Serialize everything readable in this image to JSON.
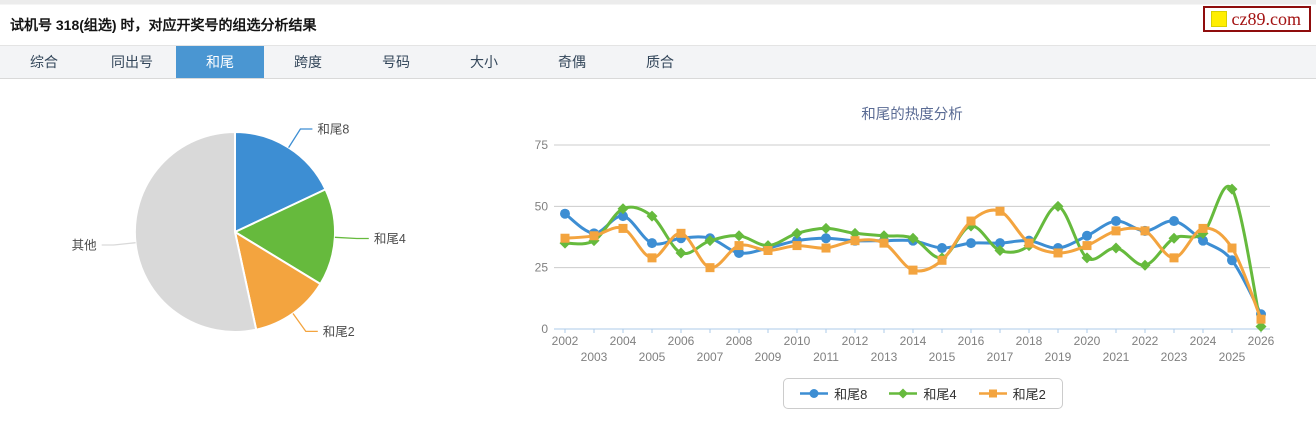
{
  "header": {
    "title": "试机号 318(组选) 时，对应开奖号的组选分析结果",
    "logo_text": "cz89.com"
  },
  "tabs": [
    {
      "label": "综合",
      "active": false
    },
    {
      "label": "同出号",
      "active": false
    },
    {
      "label": "和尾",
      "active": true
    },
    {
      "label": "跨度",
      "active": false
    },
    {
      "label": "号码",
      "active": false
    },
    {
      "label": "大小",
      "active": false
    },
    {
      "label": "奇偶",
      "active": false
    },
    {
      "label": "质合",
      "active": false
    }
  ],
  "colors": {
    "series_blue": "#3D8ED3",
    "series_green": "#66BA3D",
    "series_orange": "#F3A43F",
    "pie_gray": "#D9D9D9",
    "tab_active_bg": "#4A96D2",
    "chart_title": "#5A6B94",
    "axis_line": "#AECBE8",
    "grid_line": "#CCCCCC",
    "tick_label": "#808080",
    "pie_label": "#4D4D4D"
  },
  "chart_data": [
    {
      "type": "pie",
      "slices": [
        {
          "label": "和尾8",
          "percent": 18.0,
          "color_key": "series_blue"
        },
        {
          "label": "和尾4",
          "percent": 15.7,
          "color_key": "series_green"
        },
        {
          "label": "和尾2",
          "percent": 12.9,
          "color_key": "series_orange"
        },
        {
          "label": "其他",
          "percent": 53.4,
          "color_key": "pie_gray"
        }
      ]
    },
    {
      "type": "line",
      "title": "和尾的热度分析",
      "x": [
        2002,
        2003,
        2004,
        2005,
        2006,
        2007,
        2008,
        2009,
        2010,
        2011,
        2012,
        2013,
        2014,
        2015,
        2016,
        2017,
        2018,
        2019,
        2020,
        2021,
        2022,
        2023,
        2024,
        2025,
        2026
      ],
      "ylim": [
        0,
        75
      ],
      "yticks": [
        0,
        25,
        50,
        75
      ],
      "grid": true,
      "legend_position": "bottom",
      "series": [
        {
          "name": "和尾8",
          "marker": "circle",
          "color_key": "series_blue",
          "values": [
            47,
            39,
            46,
            35,
            37,
            37,
            31,
            33,
            36,
            37,
            36,
            36,
            36,
            33,
            35,
            35,
            36,
            33,
            38,
            44,
            40,
            44,
            36,
            28,
            6
          ]
        },
        {
          "name": "和尾4",
          "marker": "diamond",
          "color_key": "series_green",
          "values": [
            35,
            36,
            49,
            46,
            31,
            36,
            38,
            34,
            39,
            41,
            39,
            38,
            37,
            29,
            42,
            32,
            34,
            50,
            29,
            33,
            26,
            37,
            39,
            57,
            1
          ]
        },
        {
          "name": "和尾2",
          "marker": "square",
          "color_key": "series_orange",
          "values": [
            37,
            38,
            41,
            29,
            39,
            25,
            34,
            32,
            34,
            33,
            36,
            35,
            24,
            28,
            44,
            48,
            35,
            31,
            34,
            40,
            40,
            29,
            41,
            33,
            4
          ]
        }
      ]
    }
  ]
}
